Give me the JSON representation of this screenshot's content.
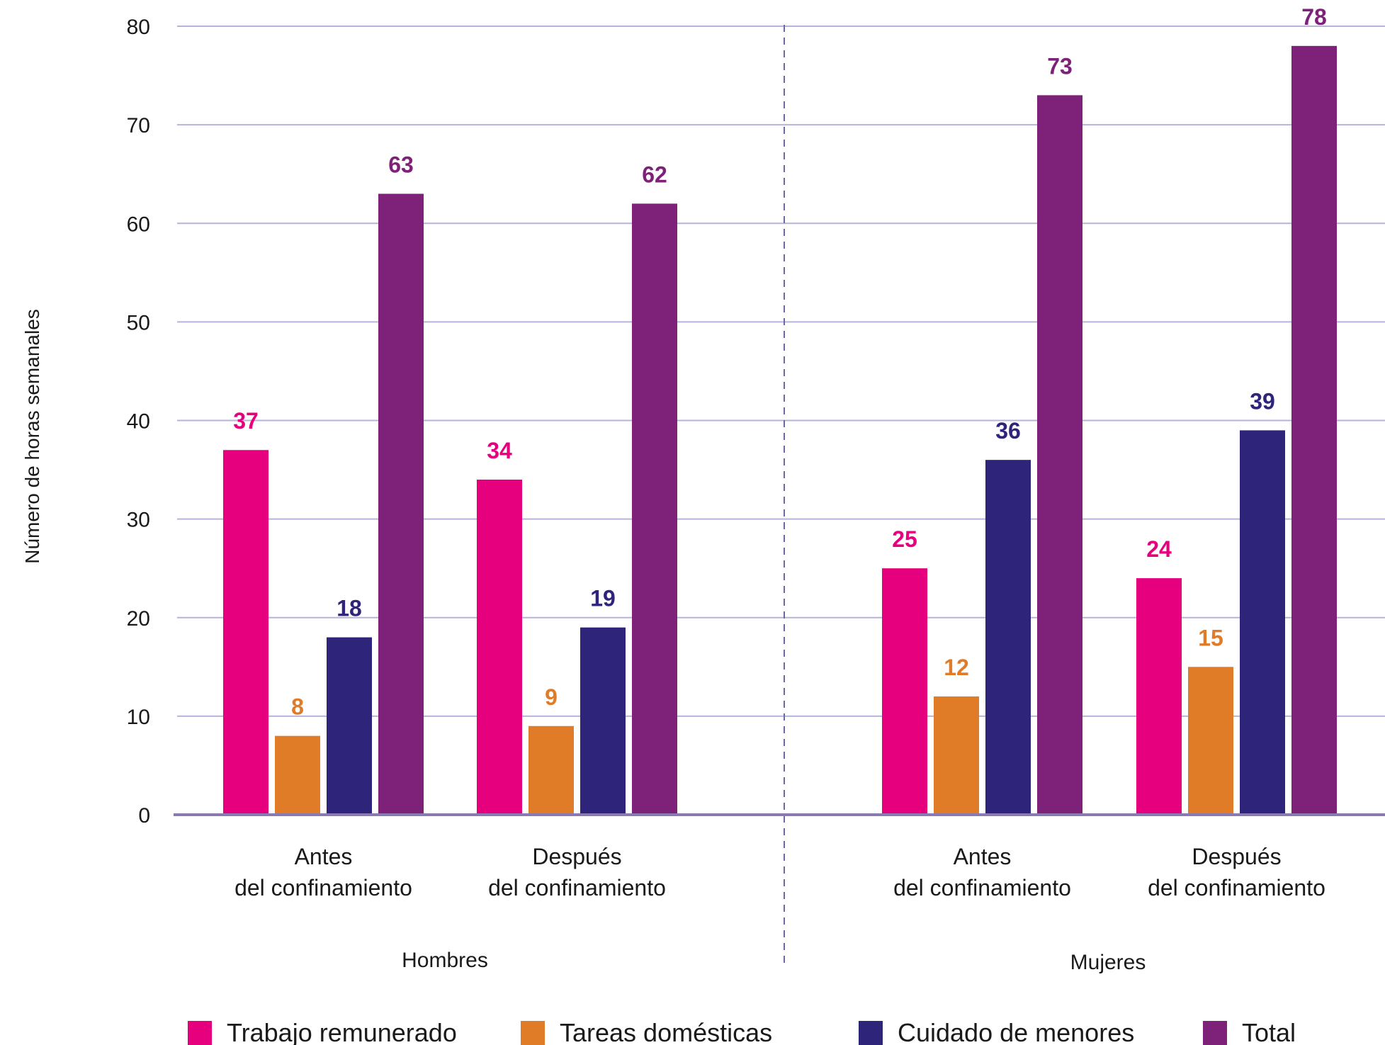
{
  "chart_data": {
    "type": "bar",
    "ylabel": "Número de horas semanales",
    "ylim": [
      0,
      80
    ],
    "yticks": [
      0,
      10,
      20,
      30,
      40,
      50,
      60,
      70,
      80
    ],
    "grid": true,
    "legend_position": "bottom",
    "groups": [
      {
        "name": "Hombres",
        "categories": [
          {
            "label_line1": "Antes",
            "label_line2": "del confinamiento"
          },
          {
            "label_line1": "Después",
            "label_line2": "del confinamiento"
          }
        ]
      },
      {
        "name": "Mujeres",
        "categories": [
          {
            "label_line1": "Antes",
            "label_line2": "del confinamiento"
          },
          {
            "label_line1": "Después",
            "label_line2": "del confinamiento"
          }
        ]
      }
    ],
    "series": [
      {
        "name": "Trabajo remunerado",
        "color": "#e6007e",
        "values": [
          37,
          34,
          25,
          24
        ]
      },
      {
        "name": "Tareas domésticas",
        "color": "#e07b27",
        "values": [
          8,
          9,
          12,
          15
        ]
      },
      {
        "name": "Cuidado de menores",
        "color": "#2e2479",
        "values": [
          18,
          19,
          36,
          39
        ]
      },
      {
        "name": "Total",
        "color": "#7e2279",
        "values": [
          63,
          62,
          73,
          78
        ]
      }
    ],
    "label_colors": [
      "#e6007e",
      "#e07b27",
      "#2e2479",
      "#7e2279"
    ]
  }
}
